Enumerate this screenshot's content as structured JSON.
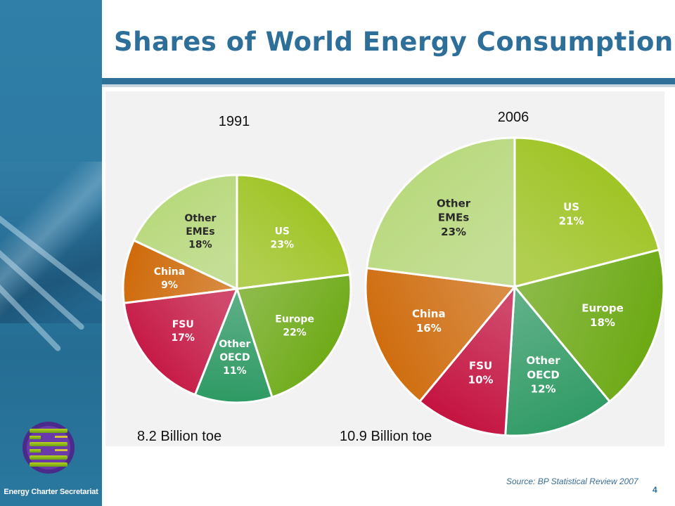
{
  "title": "Shares of World Energy Consumption",
  "org_name": "Energy Charter Secretariat",
  "source": "Source: BP Statistical Review 2007",
  "page_number": "4",
  "colors": {
    "brand_blue": "#2e6f9a",
    "US": "#9bc21a",
    "Europe": "#6aa810",
    "Other OECD": "#2e9a64",
    "FSU": "#c4103e",
    "China": "#cf6a0a",
    "Other EMEs": "#b6d878"
  },
  "chart_data": [
    {
      "type": "pie",
      "title": "1991",
      "total_label": "8.2 Billion toe",
      "slices": [
        {
          "name": "US",
          "value": 23,
          "label": "23%"
        },
        {
          "name": "Europe",
          "value": 22,
          "label": "22%"
        },
        {
          "name": "Other OECD",
          "value": 11,
          "label": "11%"
        },
        {
          "name": "FSU",
          "value": 17,
          "label": "17%"
        },
        {
          "name": "China",
          "value": 9,
          "label": "9%"
        },
        {
          "name": "Other EMEs",
          "value": 18,
          "label": "18%"
        }
      ]
    },
    {
      "type": "pie",
      "title": "2006",
      "total_label": "10.9 Billion toe",
      "slices": [
        {
          "name": "US",
          "value": 21,
          "label": "21%"
        },
        {
          "name": "Europe",
          "value": 18,
          "label": "18%"
        },
        {
          "name": "Other OECD",
          "value": 12,
          "label": "12%"
        },
        {
          "name": "FSU",
          "value": 10,
          "label": "10%"
        },
        {
          "name": "China",
          "value": 16,
          "label": "16%"
        },
        {
          "name": "Other EMEs",
          "value": 23,
          "label": "23%"
        }
      ]
    }
  ]
}
